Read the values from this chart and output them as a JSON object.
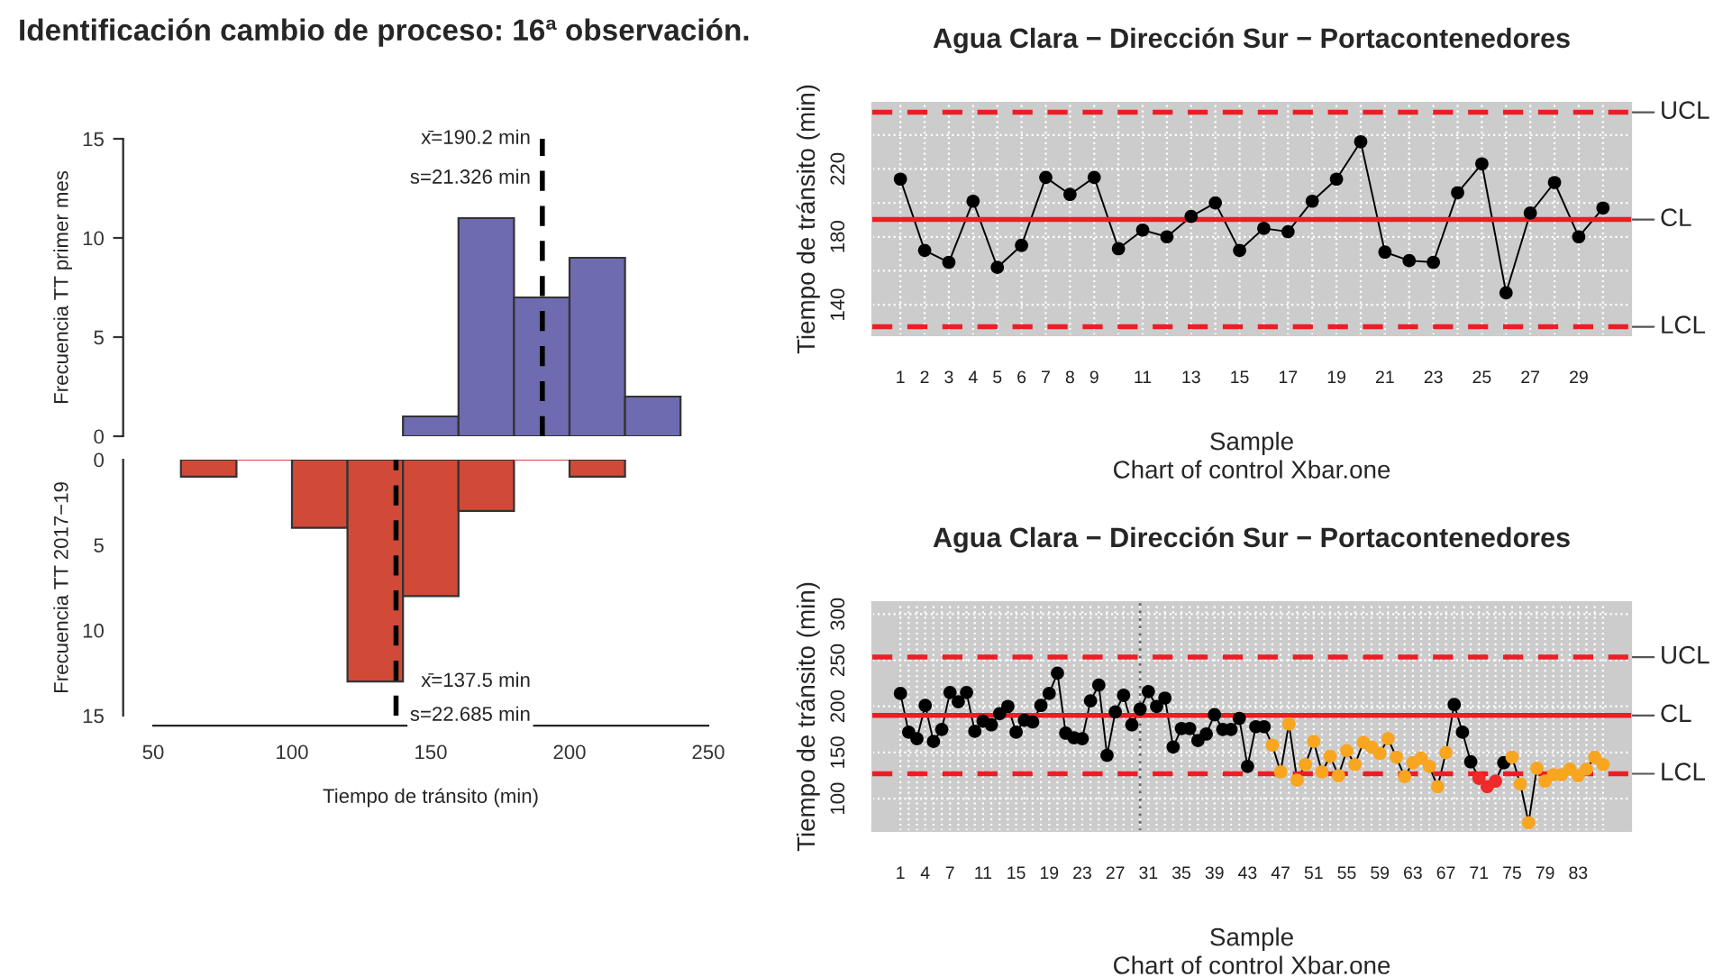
{
  "chart_data": [
    {
      "type": "histogram",
      "title": "Identificación cambio de proceso: 16ª observación.",
      "ylabel": "Frecuencia TT primer mes",
      "bins": [
        140,
        160,
        180,
        200,
        220,
        240
      ],
      "values": [
        1,
        11,
        7,
        9,
        2
      ],
      "color": "#6f6bb0",
      "xlim": [
        50,
        250
      ],
      "ylim": [
        0,
        15
      ],
      "yticks": [
        0,
        5,
        10,
        15
      ],
      "tick_labels": "y",
      "ref_lines": [
        {
          "axis": "x",
          "value": 190.2,
          "color": "#000000",
          "line_style": "dashed"
        }
      ],
      "annotations": [
        "x̄=190.2 min",
        "s=21.326 min"
      ]
    },
    {
      "type": "histogram",
      "ylabel": "Frecuencia TT 2017−19",
      "xlabel": "Tiempo de tránsito (min)",
      "bins": [
        60,
        80,
        100,
        120,
        140,
        160,
        180,
        200,
        220
      ],
      "values": [
        1,
        0,
        4,
        13,
        8,
        3,
        0,
        1
      ],
      "color": "#d14a38",
      "xlim": [
        50,
        250
      ],
      "xticks": [
        50,
        100,
        150,
        200,
        250
      ],
      "ylim": [
        15,
        0
      ],
      "yticks": [
        0,
        5,
        10,
        15
      ],
      "ref_lines": [
        {
          "axis": "x",
          "value": 137.5,
          "color": "#000000",
          "line_style": "dashed"
        }
      ],
      "annotations": [
        "x̄=137.5 min",
        "s=22.685 min"
      ]
    },
    {
      "type": "line",
      "title": "Agua Clara − Dirección Sur − Portacontenedores",
      "xlabel": "Sample",
      "ylabel": "Tiempo de tránsito (min)",
      "marker": "circle",
      "line_style": "solid",
      "grid": true,
      "x": [
        1,
        2,
        3,
        4,
        5,
        6,
        7,
        8,
        9,
        10,
        11,
        12,
        13,
        14,
        15,
        16,
        17,
        18,
        19,
        20,
        21,
        22,
        23,
        24,
        25,
        26,
        27,
        28,
        29,
        30
      ],
      "series": [
        {
          "color": "#000000",
          "values": [
            214,
            172,
            165,
            201,
            162,
            175,
            215,
            205,
            215,
            173,
            184,
            180,
            192,
            200,
            172,
            185,
            183,
            201,
            214,
            236,
            171,
            166,
            165,
            206,
            223,
            147,
            194,
            212,
            180,
            197
          ]
        }
      ],
      "xlim": [
        -0.16,
        31.16
      ],
      "xticks": [
        1,
        2,
        3,
        4,
        5,
        6,
        7,
        8,
        9,
        {
          "value": 10,
          "label": null
        },
        11,
        {
          "value": 12,
          "label": null
        },
        13,
        {
          "value": 14,
          "label": null
        },
        15,
        {
          "value": 16,
          "label": null
        },
        17,
        {
          "value": 18,
          "label": null
        },
        19,
        {
          "value": 20,
          "label": null
        },
        21,
        {
          "value": 22,
          "label": null
        },
        23,
        {
          "value": 24,
          "label": null
        },
        25,
        {
          "value": 26,
          "label": null
        },
        27,
        {
          "value": 28,
          "label": null
        },
        29,
        {
          "value": 30,
          "label": null
        }
      ],
      "ylim": [
        122,
        259
      ],
      "yticks": [
        140,
        {
          "value": 160,
          "label": null
        },
        180,
        {
          "value": 200,
          "label": null
        },
        220,
        {
          "value": 240,
          "label": null
        }
      ],
      "ref_lines": [
        {
          "axis": "y",
          "value": 253.4,
          "label": "UCL",
          "color": "#ee1c25",
          "line_style": "dashed"
        },
        {
          "axis": "y",
          "value": 190.2,
          "label": "CL",
          "color": "#ee1c25",
          "line_style": "solid"
        },
        {
          "axis": "y",
          "value": 127,
          "label": "LCL",
          "color": "#ee1c25",
          "line_style": "dashed"
        }
      ],
      "annotations": [
        "Chart of control Xbar.one"
      ]
    },
    {
      "type": "line",
      "title": "Agua Clara − Dirección Sur − Portacontenedores",
      "xlabel": "Sample",
      "ylabel": "Tiempo de tránsito (min)",
      "marker": "circle",
      "line_style": "solid",
      "grid": true,
      "x": [
        1,
        2,
        3,
        4,
        5,
        6,
        7,
        8,
        9,
        10,
        11,
        12,
        13,
        14,
        15,
        16,
        17,
        18,
        19,
        20,
        21,
        22,
        23,
        24,
        25,
        26,
        27,
        28,
        29,
        30,
        31,
        32,
        33,
        34,
        35,
        36,
        37,
        38,
        39,
        40,
        41,
        42,
        43,
        44,
        45,
        46,
        47,
        48,
        49,
        50,
        51,
        52,
        53,
        54,
        55,
        56,
        57,
        58,
        59,
        60,
        61,
        62,
        63,
        64,
        65,
        66,
        67,
        68,
        69,
        70,
        71,
        72,
        73,
        74,
        75,
        76,
        77,
        78,
        79,
        80,
        81,
        82,
        83,
        84,
        85,
        86
      ],
      "series": [
        {
          "color": "#000000",
          "values": [
            214,
            172,
            165,
            201,
            162,
            175,
            215,
            205,
            215,
            173,
            184,
            180,
            192,
            200,
            172,
            185,
            183,
            201,
            214,
            236,
            171,
            166,
            165,
            206,
            223,
            147,
            194,
            212,
            180,
            197,
            216,
            200,
            209,
            156,
            176,
            176,
            163,
            170,
            191,
            175,
            175,
            187,
            135,
            178,
            178,
            158,
            129,
            181,
            120,
            137,
            162,
            129,
            146,
            125,
            152,
            137,
            161,
            156,
            149,
            165,
            145,
            124,
            139,
            144,
            135,
            113,
            150,
            202,
            172,
            140,
            122,
            113,
            119,
            139,
            145,
            116,
            74,
            133,
            119,
            126,
            126,
            132,
            125,
            132,
            145,
            137
          ],
          "colors": [
            "#000000",
            "#000000",
            "#000000",
            "#000000",
            "#000000",
            "#000000",
            "#000000",
            "#000000",
            "#000000",
            "#000000",
            "#000000",
            "#000000",
            "#000000",
            "#000000",
            "#000000",
            "#000000",
            "#000000",
            "#000000",
            "#000000",
            "#000000",
            "#000000",
            "#000000",
            "#000000",
            "#000000",
            "#000000",
            "#000000",
            "#000000",
            "#000000",
            "#000000",
            "#000000",
            "#000000",
            "#000000",
            "#000000",
            "#000000",
            "#000000",
            "#000000",
            "#000000",
            "#000000",
            "#000000",
            "#000000",
            "#000000",
            "#000000",
            "#000000",
            "#000000",
            "#000000",
            "#f8a51f",
            "#f8a51f",
            "#f8a51f",
            "#f8a51f",
            "#f8a51f",
            "#f8a51f",
            "#f8a51f",
            "#f8a51f",
            "#f8a51f",
            "#f8a51f",
            "#f8a51f",
            "#f8a51f",
            "#f8a51f",
            "#f8a51f",
            "#f8a51f",
            "#f8a51f",
            "#f8a51f",
            "#f8a51f",
            "#f8a51f",
            "#f8a51f",
            "#f8a51f",
            "#f8a51f",
            "#000000",
            "#000000",
            "#000000",
            "#ee2a2a",
            "#ee2a2a",
            "#ee2a2a",
            "#000000",
            "#f8a51f",
            "#f8a51f",
            "#f8a51f",
            "#f8a51f",
            "#f8a51f",
            "#f8a51f",
            "#f8a51f",
            "#f8a51f",
            "#f8a51f",
            "#f8a51f",
            "#f8a51f",
            "#f8a51f"
          ]
        }
      ],
      "xlim": [
        -2.4,
        89.4
      ],
      "xticks": [
        1,
        {
          "value": 2,
          "label": null
        },
        {
          "value": 3,
          "label": null
        },
        4,
        {
          "value": 5,
          "label": null
        },
        {
          "value": 6,
          "label": null
        },
        7,
        {
          "value": 8,
          "label": null
        },
        {
          "value": 9,
          "label": null
        },
        {
          "value": 10,
          "label": null
        },
        11,
        {
          "value": 12,
          "label": null
        },
        {
          "value": 13,
          "label": null
        },
        {
          "value": 14,
          "label": null
        },
        15,
        {
          "value": 16,
          "label": null
        },
        {
          "value": 17,
          "label": null
        },
        {
          "value": 18,
          "label": null
        },
        19,
        {
          "value": 20,
          "label": null
        },
        {
          "value": 21,
          "label": null
        },
        {
          "value": 22,
          "label": null
        },
        23,
        {
          "value": 24,
          "label": null
        },
        {
          "value": 25,
          "label": null
        },
        {
          "value": 26,
          "label": null
        },
        27,
        {
          "value": 28,
          "label": null
        },
        {
          "value": 29,
          "label": null
        },
        {
          "value": 30,
          "label": null
        },
        31,
        {
          "value": 32,
          "label": null
        },
        {
          "value": 33,
          "label": null
        },
        {
          "value": 34,
          "label": null
        },
        35,
        {
          "value": 36,
          "label": null
        },
        {
          "value": 37,
          "label": null
        },
        {
          "value": 38,
          "label": null
        },
        39,
        {
          "value": 40,
          "label": null
        },
        {
          "value": 41,
          "label": null
        },
        {
          "value": 42,
          "label": null
        },
        43,
        {
          "value": 44,
          "label": null
        },
        {
          "value": 45,
          "label": null
        },
        {
          "value": 46,
          "label": null
        },
        47,
        {
          "value": 48,
          "label": null
        },
        {
          "value": 49,
          "label": null
        },
        {
          "value": 50,
          "label": null
        },
        51,
        {
          "value": 52,
          "label": null
        },
        {
          "value": 53,
          "label": null
        },
        {
          "value": 54,
          "label": null
        },
        55,
        {
          "value": 56,
          "label": null
        },
        {
          "value": 57,
          "label": null
        },
        {
          "value": 58,
          "label": null
        },
        59,
        {
          "value": 60,
          "label": null
        },
        {
          "value": 61,
          "label": null
        },
        {
          "value": 62,
          "label": null
        },
        63,
        {
          "value": 64,
          "label": null
        },
        {
          "value": 65,
          "label": null
        },
        {
          "value": 66,
          "label": null
        },
        67,
        {
          "value": 68,
          "label": null
        },
        {
          "value": 69,
          "label": null
        },
        {
          "value": 70,
          "label": null
        },
        71,
        {
          "value": 72,
          "label": null
        },
        {
          "value": 73,
          "label": null
        },
        {
          "value": 74,
          "label": null
        },
        75,
        {
          "value": 76,
          "label": null
        },
        {
          "value": 77,
          "label": null
        },
        {
          "value": 78,
          "label": null
        },
        79,
        {
          "value": 80,
          "label": null
        },
        {
          "value": 81,
          "label": null
        },
        {
          "value": 82,
          "label": null
        },
        83,
        {
          "value": 84,
          "label": null
        },
        {
          "value": 85,
          "label": null
        },
        {
          "value": 86,
          "label": null
        }
      ],
      "ylim": [
        65,
        313
      ],
      "yticks": [
        100,
        150,
        200,
        250,
        300
      ],
      "ref_lines": [
        {
          "axis": "y",
          "value": 253.4,
          "label": "UCL",
          "color": "#ee1c25",
          "line_style": "dashed"
        },
        {
          "axis": "y",
          "value": 190.2,
          "label": "CL",
          "color": "#ee1c25",
          "line_style": "solid"
        },
        {
          "axis": "y",
          "value": 127,
          "label": "LCL",
          "color": "#ee1c25",
          "line_style": "dashed"
        },
        {
          "axis": "x",
          "value": 30,
          "color": "#666666",
          "line_style": "dotted"
        }
      ],
      "annotations": [
        "Chart of control Xbar.one"
      ]
    }
  ]
}
